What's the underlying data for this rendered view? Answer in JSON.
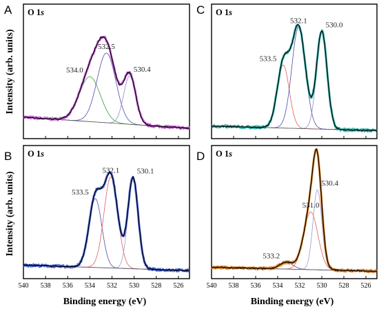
{
  "chart_data": [
    {
      "type": "line",
      "panel_letter": "A",
      "title": "O 1s",
      "xlabel": "",
      "ylabel": "Intensity (arb. units)",
      "xlim": [
        540,
        525
      ],
      "data_color": "#7a1a86",
      "fill_color": "#c66fd4",
      "baseline": [
        0.13,
        0.03
      ],
      "components": [
        {
          "label": "534.0",
          "center": 534.0,
          "height": 0.4,
          "sigma": 0.95,
          "color": "#3f9a3f"
        },
        {
          "label": "532.5",
          "center": 532.5,
          "height": 0.62,
          "sigma": 0.85,
          "color": "#4a4aa8"
        },
        {
          "label": "530.4",
          "center": 530.4,
          "height": 0.43,
          "sigma": 0.55,
          "color": "#8a8ac8"
        }
      ]
    },
    {
      "type": "line",
      "panel_letter": "C",
      "title": "O 1s",
      "xlabel": "",
      "ylabel": "",
      "xlim": [
        540,
        525
      ],
      "data_color": "#0e5c58",
      "fill_color": "#2fb1a8",
      "baseline": [
        0.05,
        0.01
      ],
      "components": [
        {
          "label": "533.5",
          "center": 533.5,
          "height": 0.56,
          "sigma": 0.55,
          "color": "#e35a5a"
        },
        {
          "label": "532.1",
          "center": 532.1,
          "height": 0.9,
          "sigma": 0.62,
          "color": "#4a4aa8"
        },
        {
          "label": "530.0",
          "center": 530.0,
          "height": 0.87,
          "sigma": 0.48,
          "color": "#8a8ac8"
        }
      ]
    },
    {
      "type": "line",
      "panel_letter": "B",
      "title": "O 1s",
      "xlabel": "",
      "ylabel": "Intensity (arb. units)",
      "xlim": [
        540,
        525
      ],
      "data_color": "#0d1f7a",
      "fill_color": "#4a66d6",
      "baseline": [
        0.06,
        0.01
      ],
      "components": [
        {
          "label": "533.5",
          "center": 533.5,
          "height": 0.62,
          "sigma": 0.58,
          "color": "#4a4aa8"
        },
        {
          "label": "532.1",
          "center": 532.1,
          "height": 0.82,
          "sigma": 0.62,
          "color": "#e35a5a"
        },
        {
          "label": "530.1",
          "center": 530.1,
          "height": 0.82,
          "sigma": 0.46,
          "color": "#9a9ad0"
        }
      ]
    },
    {
      "type": "line",
      "panel_letter": "D",
      "title": "O 1s",
      "xlabel": "Binding energy (eV)",
      "ylabel": "",
      "xlim": [
        540,
        525
      ],
      "data_color": "#6a3300",
      "fill_color": "#e38a2a",
      "baseline": [
        0.04,
        0.005
      ],
      "components": [
        {
          "label": "533.2",
          "center": 533.2,
          "height": 0.06,
          "sigma": 0.6,
          "color": "#4a4aa8"
        },
        {
          "label": "531.0",
          "center": 531.0,
          "height": 0.52,
          "sigma": 0.65,
          "color": "#e35a5a"
        },
        {
          "label": "530.4",
          "center": 530.4,
          "height": 0.72,
          "sigma": 0.4,
          "color": "#9a9ad0"
        }
      ]
    }
  ],
  "x_ticks": [
    "540",
    "538",
    "536",
    "534",
    "532",
    "530",
    "528",
    "526"
  ],
  "shared_xlabel": "Binding energy (eV)",
  "shared_ylabel": "Intensity (arb. units)"
}
